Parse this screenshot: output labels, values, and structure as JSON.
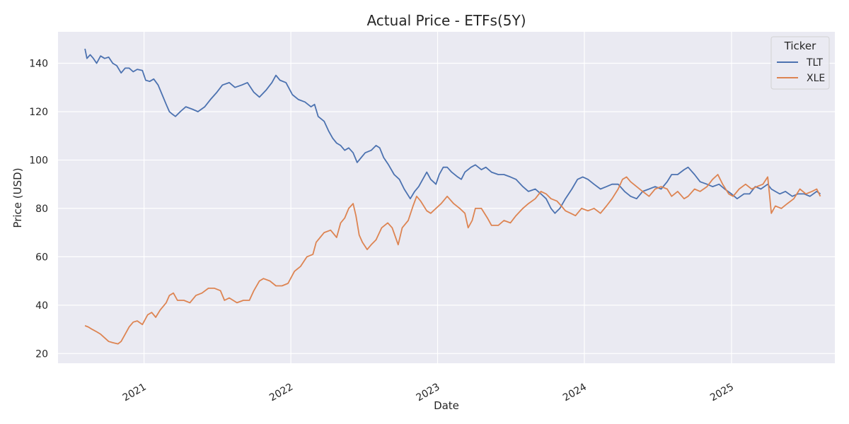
{
  "chart_data": {
    "type": "line",
    "title": "Actual Price - ETFs(5Y)",
    "xlabel": "Date",
    "ylabel": "Price (USD)",
    "x_ticks": [
      "2021",
      "2022",
      "2023",
      "2024",
      "2025"
    ],
    "y_ticks": [
      20,
      40,
      60,
      80,
      100,
      120,
      140
    ],
    "xlim": [
      "2020-06-01",
      "2025-09-15"
    ],
    "ylim": [
      16,
      153
    ],
    "grid": true,
    "legend": {
      "title": "Ticker",
      "placement": "top-right"
    },
    "series": [
      {
        "name": "TLT",
        "color": "#4c72b0",
        "points": [
          [
            "2020-08-07",
            146
          ],
          [
            "2020-08-12",
            142
          ],
          [
            "2020-08-20",
            143.5
          ],
          [
            "2020-08-28",
            142
          ],
          [
            "2020-09-05",
            140
          ],
          [
            "2020-09-15",
            143
          ],
          [
            "2020-09-25",
            142
          ],
          [
            "2020-10-05",
            142.5
          ],
          [
            "2020-10-15",
            140
          ],
          [
            "2020-10-25",
            139
          ],
          [
            "2020-11-05",
            136
          ],
          [
            "2020-11-15",
            138
          ],
          [
            "2020-11-25",
            138
          ],
          [
            "2020-12-05",
            136.5
          ],
          [
            "2020-12-15",
            137.5
          ],
          [
            "2020-12-28",
            137
          ],
          [
            "2021-01-05",
            133
          ],
          [
            "2021-01-15",
            132.5
          ],
          [
            "2021-01-25",
            133.5
          ],
          [
            "2021-02-05",
            131
          ],
          [
            "2021-02-15",
            127
          ],
          [
            "2021-02-25",
            123
          ],
          [
            "2021-03-05",
            120
          ],
          [
            "2021-03-12",
            119
          ],
          [
            "2021-03-20",
            118
          ],
          [
            "2021-04-01",
            120
          ],
          [
            "2021-04-15",
            122
          ],
          [
            "2021-05-01",
            121
          ],
          [
            "2021-05-15",
            120
          ],
          [
            "2021-06-01",
            122
          ],
          [
            "2021-06-15",
            125
          ],
          [
            "2021-07-01",
            128
          ],
          [
            "2021-07-15",
            131
          ],
          [
            "2021-08-01",
            132
          ],
          [
            "2021-08-15",
            130
          ],
          [
            "2021-09-01",
            131
          ],
          [
            "2021-09-15",
            132
          ],
          [
            "2021-10-01",
            128
          ],
          [
            "2021-10-15",
            126
          ],
          [
            "2021-11-01",
            129
          ],
          [
            "2021-11-15",
            132
          ],
          [
            "2021-11-25",
            135
          ],
          [
            "2021-12-05",
            133
          ],
          [
            "2021-12-20",
            132
          ],
          [
            "2022-01-05",
            127
          ],
          [
            "2022-01-20",
            125
          ],
          [
            "2022-02-05",
            124
          ],
          [
            "2022-02-20",
            122
          ],
          [
            "2022-03-01",
            123
          ],
          [
            "2022-03-10",
            118
          ],
          [
            "2022-03-25",
            116
          ],
          [
            "2022-04-05",
            112
          ],
          [
            "2022-04-15",
            109
          ],
          [
            "2022-04-25",
            107
          ],
          [
            "2022-05-05",
            106
          ],
          [
            "2022-05-15",
            104
          ],
          [
            "2022-05-25",
            105
          ],
          [
            "2022-06-05",
            103
          ],
          [
            "2022-06-15",
            99
          ],
          [
            "2022-06-25",
            101
          ],
          [
            "2022-07-05",
            103
          ],
          [
            "2022-07-20",
            104
          ],
          [
            "2022-08-01",
            106
          ],
          [
            "2022-08-10",
            105
          ],
          [
            "2022-08-20",
            101
          ],
          [
            "2022-09-01",
            98
          ],
          [
            "2022-09-15",
            94
          ],
          [
            "2022-09-28",
            92
          ],
          [
            "2022-10-10",
            88
          ],
          [
            "2022-10-25",
            84
          ],
          [
            "2022-11-05",
            87
          ],
          [
            "2022-11-15",
            89
          ],
          [
            "2022-11-25",
            92
          ],
          [
            "2022-12-05",
            95
          ],
          [
            "2022-12-15",
            92
          ],
          [
            "2022-12-28",
            90
          ],
          [
            "2023-01-05",
            94
          ],
          [
            "2023-01-15",
            97
          ],
          [
            "2023-01-25",
            97
          ],
          [
            "2023-02-05",
            95
          ],
          [
            "2023-02-20",
            93
          ],
          [
            "2023-03-01",
            92
          ],
          [
            "2023-03-10",
            95
          ],
          [
            "2023-03-25",
            97
          ],
          [
            "2023-04-05",
            98
          ],
          [
            "2023-04-20",
            96
          ],
          [
            "2023-05-01",
            97
          ],
          [
            "2023-05-15",
            95
          ],
          [
            "2023-06-01",
            94
          ],
          [
            "2023-06-15",
            94
          ],
          [
            "2023-07-01",
            93
          ],
          [
            "2023-07-15",
            92
          ],
          [
            "2023-08-01",
            89
          ],
          [
            "2023-08-15",
            87
          ],
          [
            "2023-09-01",
            88
          ],
          [
            "2023-09-15",
            86
          ],
          [
            "2023-09-28",
            84
          ],
          [
            "2023-10-10",
            80
          ],
          [
            "2023-10-20",
            78
          ],
          [
            "2023-11-01",
            80
          ],
          [
            "2023-11-15",
            84
          ],
          [
            "2023-12-01",
            88
          ],
          [
            "2023-12-15",
            92
          ],
          [
            "2023-12-28",
            93
          ],
          [
            "2024-01-10",
            92
          ],
          [
            "2024-01-25",
            90
          ],
          [
            "2024-02-10",
            88
          ],
          [
            "2024-02-25",
            89
          ],
          [
            "2024-03-10",
            90
          ],
          [
            "2024-03-25",
            90
          ],
          [
            "2024-04-10",
            87
          ],
          [
            "2024-04-25",
            85
          ],
          [
            "2024-05-10",
            84
          ],
          [
            "2024-05-25",
            87
          ],
          [
            "2024-06-10",
            88
          ],
          [
            "2024-06-25",
            89
          ],
          [
            "2024-07-10",
            88
          ],
          [
            "2024-07-25",
            91
          ],
          [
            "2024-08-05",
            94
          ],
          [
            "2024-08-20",
            94
          ],
          [
            "2024-09-05",
            96
          ],
          [
            "2024-09-15",
            97
          ],
          [
            "2024-10-01",
            94
          ],
          [
            "2024-10-15",
            91
          ],
          [
            "2024-11-01",
            90
          ],
          [
            "2024-11-15",
            89
          ],
          [
            "2024-12-01",
            90
          ],
          [
            "2024-12-15",
            88
          ],
          [
            "2025-01-01",
            86
          ],
          [
            "2025-01-15",
            84
          ],
          [
            "2025-02-01",
            86
          ],
          [
            "2025-02-15",
            86
          ],
          [
            "2025-03-01",
            89
          ],
          [
            "2025-03-15",
            88
          ],
          [
            "2025-04-01",
            90
          ],
          [
            "2025-04-10",
            88
          ],
          [
            "2025-04-20",
            87
          ],
          [
            "2025-05-01",
            86
          ],
          [
            "2025-05-15",
            87
          ],
          [
            "2025-06-01",
            85
          ],
          [
            "2025-06-15",
            86
          ],
          [
            "2025-07-01",
            86
          ],
          [
            "2025-07-15",
            85
          ],
          [
            "2025-08-01",
            87
          ],
          [
            "2025-08-10",
            86
          ]
        ]
      },
      {
        "name": "XLE",
        "color": "#dd8452",
        "points": [
          [
            "2020-08-07",
            31.5
          ],
          [
            "2020-08-15",
            31
          ],
          [
            "2020-08-25",
            30
          ],
          [
            "2020-09-05",
            29
          ],
          [
            "2020-09-15",
            28
          ],
          [
            "2020-09-25",
            26.5
          ],
          [
            "2020-10-05",
            25
          ],
          [
            "2020-10-15",
            24.5
          ],
          [
            "2020-10-28",
            24
          ],
          [
            "2020-11-05",
            25
          ],
          [
            "2020-11-15",
            28
          ],
          [
            "2020-11-25",
            31
          ],
          [
            "2020-12-05",
            33
          ],
          [
            "2020-12-15",
            33.5
          ],
          [
            "2020-12-28",
            32
          ],
          [
            "2021-01-10",
            36
          ],
          [
            "2021-01-20",
            37
          ],
          [
            "2021-01-30",
            35
          ],
          [
            "2021-02-10",
            38
          ],
          [
            "2021-02-25",
            41
          ],
          [
            "2021-03-05",
            44
          ],
          [
            "2021-03-15",
            45
          ],
          [
            "2021-03-25",
            42
          ],
          [
            "2021-04-10",
            42
          ],
          [
            "2021-04-25",
            41
          ],
          [
            "2021-05-10",
            44
          ],
          [
            "2021-05-25",
            45
          ],
          [
            "2021-06-10",
            47
          ],
          [
            "2021-06-25",
            47
          ],
          [
            "2021-07-10",
            46
          ],
          [
            "2021-07-20",
            42
          ],
          [
            "2021-08-01",
            43
          ],
          [
            "2021-08-20",
            41
          ],
          [
            "2021-09-05",
            42
          ],
          [
            "2021-09-20",
            42
          ],
          [
            "2021-10-01",
            46
          ],
          [
            "2021-10-15",
            50
          ],
          [
            "2021-10-25",
            51
          ],
          [
            "2021-11-10",
            50
          ],
          [
            "2021-11-25",
            48
          ],
          [
            "2021-12-10",
            48
          ],
          [
            "2021-12-25",
            49
          ],
          [
            "2022-01-10",
            54
          ],
          [
            "2022-01-25",
            56
          ],
          [
            "2022-02-10",
            60
          ],
          [
            "2022-02-25",
            61
          ],
          [
            "2022-03-05",
            66
          ],
          [
            "2022-03-15",
            68
          ],
          [
            "2022-03-25",
            70
          ],
          [
            "2022-04-10",
            71
          ],
          [
            "2022-04-25",
            68
          ],
          [
            "2022-05-05",
            74
          ],
          [
            "2022-05-15",
            76
          ],
          [
            "2022-05-25",
            80
          ],
          [
            "2022-06-05",
            82
          ],
          [
            "2022-06-12",
            77
          ],
          [
            "2022-06-20",
            69
          ],
          [
            "2022-06-28",
            66
          ],
          [
            "2022-07-10",
            63
          ],
          [
            "2022-07-20",
            65
          ],
          [
            "2022-08-01",
            67
          ],
          [
            "2022-08-15",
            72
          ],
          [
            "2022-08-30",
            74
          ],
          [
            "2022-09-10",
            72
          ],
          [
            "2022-09-25",
            65
          ],
          [
            "2022-10-05",
            72
          ],
          [
            "2022-10-20",
            75
          ],
          [
            "2022-11-01",
            81
          ],
          [
            "2022-11-10",
            85
          ],
          [
            "2022-11-20",
            83
          ],
          [
            "2022-12-05",
            79
          ],
          [
            "2022-12-15",
            78
          ],
          [
            "2022-12-28",
            80
          ],
          [
            "2023-01-10",
            82
          ],
          [
            "2023-01-25",
            85
          ],
          [
            "2023-02-10",
            82
          ],
          [
            "2023-02-25",
            80
          ],
          [
            "2023-03-10",
            78
          ],
          [
            "2023-03-18",
            72
          ],
          [
            "2023-03-28",
            75
          ],
          [
            "2023-04-05",
            80
          ],
          [
            "2023-04-20",
            80
          ],
          [
            "2023-05-05",
            76
          ],
          [
            "2023-05-15",
            73
          ],
          [
            "2023-06-01",
            73
          ],
          [
            "2023-06-15",
            75
          ],
          [
            "2023-07-01",
            74
          ],
          [
            "2023-07-15",
            77
          ],
          [
            "2023-08-01",
            80
          ],
          [
            "2023-08-15",
            82
          ],
          [
            "2023-09-01",
            84
          ],
          [
            "2023-09-15",
            87
          ],
          [
            "2023-09-28",
            86
          ],
          [
            "2023-10-10",
            84
          ],
          [
            "2023-10-25",
            83
          ],
          [
            "2023-11-05",
            81
          ],
          [
            "2023-11-15",
            79
          ],
          [
            "2023-11-28",
            78
          ],
          [
            "2023-12-10",
            77
          ],
          [
            "2023-12-25",
            80
          ],
          [
            "2024-01-10",
            79
          ],
          [
            "2024-01-25",
            80
          ],
          [
            "2024-02-10",
            78
          ],
          [
            "2024-02-25",
            81
          ],
          [
            "2024-03-10",
            84
          ],
          [
            "2024-03-25",
            88
          ],
          [
            "2024-04-05",
            92
          ],
          [
            "2024-04-15",
            93
          ],
          [
            "2024-04-25",
            91
          ],
          [
            "2024-05-10",
            89
          ],
          [
            "2024-05-25",
            87
          ],
          [
            "2024-06-10",
            85
          ],
          [
            "2024-06-25",
            88
          ],
          [
            "2024-07-10",
            89
          ],
          [
            "2024-07-25",
            88
          ],
          [
            "2024-08-05",
            85
          ],
          [
            "2024-08-20",
            87
          ],
          [
            "2024-09-05",
            84
          ],
          [
            "2024-09-15",
            85
          ],
          [
            "2024-10-01",
            88
          ],
          [
            "2024-10-15",
            87
          ],
          [
            "2024-11-01",
            89
          ],
          [
            "2024-11-15",
            92
          ],
          [
            "2024-11-28",
            94
          ],
          [
            "2024-12-10",
            90
          ],
          [
            "2024-12-25",
            86
          ],
          [
            "2025-01-05",
            85
          ],
          [
            "2025-01-20",
            88
          ],
          [
            "2025-02-05",
            90
          ],
          [
            "2025-02-20",
            88
          ],
          [
            "2025-03-05",
            89
          ],
          [
            "2025-03-20",
            90
          ],
          [
            "2025-04-01",
            93
          ],
          [
            "2025-04-06",
            85
          ],
          [
            "2025-04-10",
            78
          ],
          [
            "2025-04-20",
            81
          ],
          [
            "2025-05-05",
            80
          ],
          [
            "2025-05-20",
            82
          ],
          [
            "2025-06-05",
            84
          ],
          [
            "2025-06-20",
            88
          ],
          [
            "2025-07-05",
            86
          ],
          [
            "2025-07-20",
            87
          ],
          [
            "2025-08-01",
            88
          ],
          [
            "2025-08-10",
            85
          ]
        ]
      }
    ]
  }
}
